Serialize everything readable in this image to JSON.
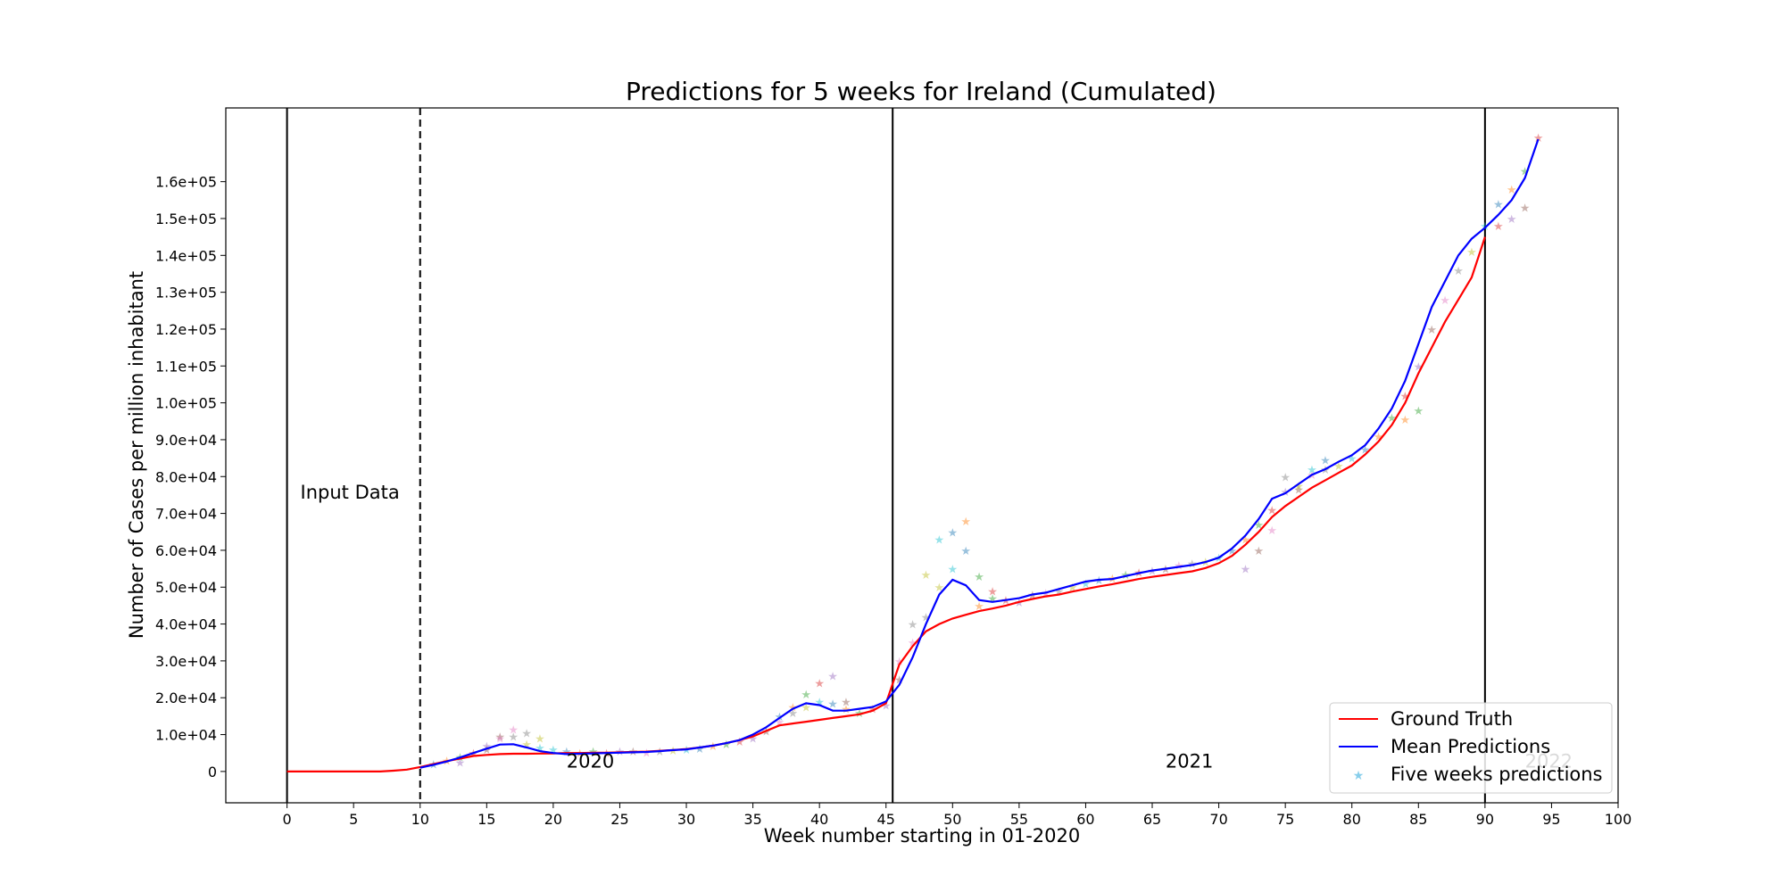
{
  "chart_data": {
    "type": "line",
    "title": "Predictions for 5 weeks for Ireland (Cumulated)",
    "xlabel": "Week number starting in 01-2020",
    "ylabel": "Number of Cases per million inhabitant",
    "xlim": [
      -4.6,
      100
    ],
    "ylim": [
      -8500,
      180000
    ],
    "xticks": [
      0,
      5,
      10,
      15,
      20,
      25,
      30,
      35,
      40,
      45,
      50,
      55,
      60,
      65,
      70,
      75,
      80,
      85,
      90,
      95,
      100
    ],
    "yticks": [
      0,
      10000,
      20000,
      30000,
      40000,
      50000,
      60000,
      70000,
      80000,
      90000,
      100000,
      110000,
      120000,
      130000,
      140000,
      150000,
      160000
    ],
    "ytick_labels": [
      "0",
      "1.0e+04",
      "2.0e+04",
      "3.0e+04",
      "4.0e+04",
      "5.0e+04",
      "6.0e+04",
      "7.0e+04",
      "8.0e+04",
      "9.0e+04",
      "1.0e+05",
      "1.1e+05",
      "1.2e+05",
      "1.3e+05",
      "1.4e+05",
      "1.5e+05",
      "1.6e+05"
    ],
    "grid": false,
    "legend_position": "bottom-right",
    "vertical_lines": [
      {
        "x": 0,
        "style": "solid"
      },
      {
        "x": 10,
        "style": "dashed"
      },
      {
        "x": 45.5,
        "style": "solid"
      },
      {
        "x": 90,
        "style": "solid"
      }
    ],
    "annotations": [
      {
        "text": "Input Data",
        "x": 1,
        "y": 74000,
        "color": "#000000"
      },
      {
        "text": "2020",
        "x": 21,
        "y": 1000,
        "color": "#000000"
      },
      {
        "text": "2021",
        "x": 66,
        "y": 1000,
        "color": "#000000"
      },
      {
        "text": "2022",
        "x": 93,
        "y": 1000,
        "color": "#bbbbbb"
      }
    ],
    "series": [
      {
        "name": "Ground Truth",
        "color": "#ff0000",
        "style": "line",
        "x": [
          0,
          1,
          2,
          3,
          4,
          5,
          6,
          7,
          8,
          9,
          10,
          11,
          12,
          13,
          14,
          15,
          16,
          17,
          18,
          19,
          20,
          21,
          22,
          23,
          24,
          25,
          26,
          27,
          28,
          29,
          30,
          31,
          32,
          33,
          34,
          35,
          36,
          37,
          38,
          39,
          40,
          41,
          42,
          43,
          44,
          45,
          46,
          47,
          48,
          49,
          50,
          51,
          52,
          53,
          54,
          55,
          56,
          57,
          58,
          59,
          60,
          61,
          62,
          63,
          64,
          65,
          66,
          67,
          68,
          69,
          70,
          71,
          72,
          73,
          74,
          75,
          76,
          77,
          78,
          79,
          80,
          81,
          82,
          83,
          84,
          85,
          86,
          87,
          88,
          89,
          90
        ],
        "y": [
          0,
          0,
          0,
          0,
          0,
          0,
          0,
          0,
          200,
          500,
          1200,
          2000,
          2800,
          3500,
          4200,
          4500,
          4700,
          4800,
          4800,
          4850,
          4900,
          5000,
          5000,
          5100,
          5100,
          5200,
          5300,
          5400,
          5600,
          5800,
          6100,
          6500,
          7000,
          7700,
          8500,
          9500,
          11000,
          12500,
          13000,
          13500,
          14000,
          14500,
          15000,
          15500,
          16500,
          18500,
          29000,
          34000,
          38000,
          40000,
          41500,
          42500,
          43500,
          44200,
          45000,
          46000,
          46800,
          47500,
          48000,
          48800,
          49500,
          50200,
          50800,
          51500,
          52200,
          52800,
          53300,
          53800,
          54300,
          55200,
          56500,
          58500,
          61500,
          65000,
          69000,
          72000,
          74500,
          77000,
          79000,
          81000,
          83000,
          86000,
          89500,
          94000,
          100000,
          108000,
          115000,
          122000,
          128000,
          134000,
          145000
        ]
      },
      {
        "name": "Mean Predictions",
        "color": "#0000ff",
        "style": "line",
        "x": [
          10,
          11,
          12,
          13,
          14,
          15,
          16,
          17,
          18,
          19,
          20,
          21,
          22,
          23,
          24,
          25,
          26,
          27,
          28,
          29,
          30,
          31,
          32,
          33,
          34,
          35,
          36,
          37,
          38,
          39,
          40,
          41,
          42,
          43,
          44,
          45,
          46,
          47,
          48,
          49,
          50,
          51,
          52,
          53,
          54,
          55,
          56,
          57,
          58,
          59,
          60,
          61,
          62,
          63,
          64,
          65,
          66,
          67,
          68,
          69,
          70,
          71,
          72,
          73,
          74,
          75,
          76,
          77,
          78,
          79,
          80,
          81,
          82,
          83,
          84,
          85,
          86,
          87,
          88,
          89,
          90,
          91,
          92,
          93,
          94
        ],
        "y": [
          1000,
          1800,
          2700,
          3800,
          5000,
          6200,
          7300,
          7400,
          6500,
          5500,
          5000,
          4700,
          4800,
          4900,
          5000,
          5100,
          5200,
          5300,
          5500,
          5800,
          6000,
          6500,
          7000,
          7700,
          8500,
          10000,
          12000,
          14500,
          17000,
          18500,
          18000,
          16500,
          16500,
          17000,
          17500,
          19000,
          23500,
          31000,
          40000,
          48000,
          52000,
          50500,
          46500,
          46000,
          46500,
          47000,
          48000,
          48500,
          49500,
          50500,
          51500,
          52000,
          52200,
          53000,
          53800,
          54500,
          55000,
          55500,
          56000,
          56800,
          58000,
          60500,
          64000,
          68500,
          74000,
          75500,
          78000,
          80500,
          82000,
          84000,
          85800,
          88500,
          93000,
          98500,
          106000,
          116000,
          126000,
          133000,
          140000,
          144500,
          147500,
          151000,
          155000,
          161000,
          171500
        ]
      },
      {
        "name": "Five weeks predictions",
        "color": "#87ceeb",
        "style": "star",
        "palette": [
          "#1f77b4",
          "#ff7f0e",
          "#2ca02c",
          "#d62728",
          "#9467bd",
          "#8c564b",
          "#e377c2",
          "#7f7f7f",
          "#bcbd22",
          "#17becf"
        ],
        "x": [
          11,
          12,
          13,
          14,
          15,
          16,
          17,
          18,
          19,
          20,
          21,
          22,
          23,
          24,
          25,
          26,
          27,
          28,
          29,
          30,
          31,
          32,
          33,
          34,
          35,
          36,
          37,
          38,
          39,
          40,
          41,
          42,
          43,
          44,
          45,
          46,
          47,
          48,
          49,
          50,
          51,
          52,
          53,
          54,
          55,
          56,
          57,
          58,
          59,
          60,
          61,
          62,
          63,
          64,
          65,
          66,
          67,
          68,
          69,
          70,
          71,
          72,
          73,
          74,
          75,
          76,
          77,
          78,
          79,
          80,
          81,
          82,
          83,
          84,
          85,
          86,
          87,
          88,
          89,
          90,
          91,
          92,
          93,
          94,
          13,
          15,
          16,
          17,
          18,
          19,
          37,
          38,
          39,
          40,
          41,
          42,
          46,
          47,
          48,
          49,
          50,
          51,
          52,
          53,
          72,
          73,
          74,
          75,
          76,
          77,
          78,
          84,
          85,
          91,
          92,
          93
        ],
        "y": [
          2000,
          3000,
          4000,
          5000,
          7000,
          9500,
          11500,
          10500,
          9000,
          6000,
          5500,
          5000,
          5500,
          5000,
          5500,
          5500,
          5200,
          5500,
          5800,
          6000,
          6300,
          7000,
          7500,
          8200,
          9000,
          11000,
          13500,
          16000,
          17500,
          19000,
          18500,
          17000,
          16000,
          17000,
          18000,
          25000,
          35000,
          42000,
          50000,
          55000,
          60000,
          45000,
          47000,
          46500,
          46000,
          48000,
          48500,
          49000,
          50000,
          51000,
          52000,
          52500,
          53500,
          54000,
          54500,
          55000,
          56000,
          56500,
          57000,
          58000,
          60000,
          63000,
          67000,
          71000,
          76000,
          76500,
          80500,
          82000,
          83000,
          85000,
          87500,
          91000,
          96000,
          102000,
          110000,
          120000,
          128000,
          136000,
          141000,
          148000,
          154000,
          158000,
          163000,
          172000,
          2500,
          6000,
          9000,
          9500,
          7500,
          6500,
          15000,
          17500,
          21000,
          24000,
          26000,
          19000,
          30000,
          40000,
          53500,
          63000,
          65000,
          68000,
          53000,
          49000,
          55000,
          60000,
          65500,
          80000,
          77500,
          82000,
          84500,
          95500,
          98000,
          148000,
          150000,
          153000
        ]
      }
    ]
  }
}
